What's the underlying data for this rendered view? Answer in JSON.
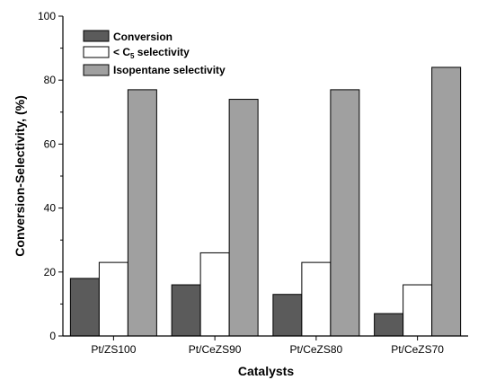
{
  "chart_data": {
    "type": "bar",
    "title": "",
    "xlabel": "Catalysts",
    "ylabel": "Conversion-Selectivity, (%)",
    "ylim": [
      0,
      100
    ],
    "yticks": [
      0,
      20,
      40,
      60,
      80,
      100
    ],
    "grid": false,
    "legend_position": "top-left",
    "categories": [
      "Pt/ZS100",
      "Pt/CeZS90",
      "Pt/CeZS80",
      "Pt/CeZS70"
    ],
    "series": [
      {
        "name": "Conversion",
        "color": "#5b5b5b",
        "values": [
          18,
          16,
          13,
          7
        ]
      },
      {
        "name": "< C5 selectivity",
        "name_prefix": "< C",
        "name_subscript": "5",
        "name_suffix": " selectivity",
        "color": "#ffffff",
        "values": [
          23,
          26,
          23,
          16
        ]
      },
      {
        "name": "Isopentane selectivity",
        "color": "#a0a0a0",
        "values": [
          77,
          74,
          77,
          84
        ]
      }
    ]
  }
}
